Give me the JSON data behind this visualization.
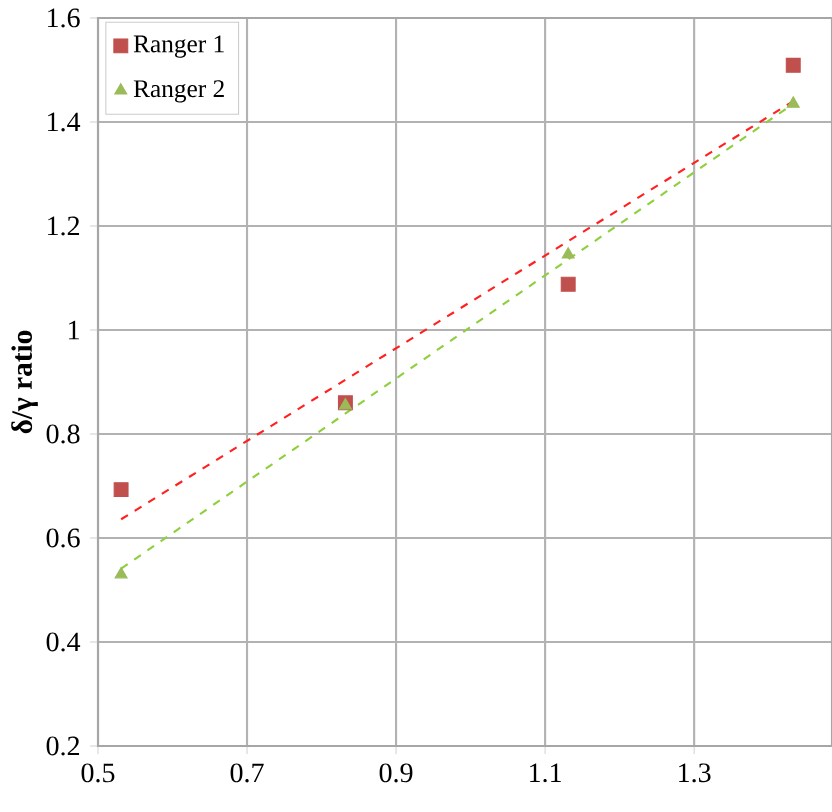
{
  "chart_data": {
    "type": "scatter",
    "ylabel": "δ/γ ratio",
    "xlim": [
      0.5,
      1.485
    ],
    "xticks": [
      0.5,
      0.7,
      0.9,
      1.1,
      1.3
    ],
    "ylim": [
      0.2,
      1.6
    ],
    "yticks": [
      0.2,
      0.4,
      0.6,
      0.8,
      1,
      1.2,
      1.4,
      1.6
    ],
    "grid": true,
    "legend": "top left",
    "series": [
      {
        "name": "Ranger 1",
        "marker": "square",
        "color": "#c0504d",
        "x": [
          0.531,
          0.832,
          1.131,
          1.433
        ],
        "values": [
          0.693,
          0.86,
          1.088,
          1.509
        ]
      },
      {
        "name": "Ranger 2",
        "marker": "triangle",
        "color": "#9bbb59",
        "x": [
          0.531,
          0.832,
          1.131,
          1.433
        ],
        "values": [
          0.53,
          0.855,
          1.145,
          1.435
        ]
      },
      {
        "type": "line",
        "line_style": "dashed",
        "color": "#ff2020",
        "x": [
          0.531,
          1.433
        ],
        "values": [
          0.636,
          1.44
        ]
      },
      {
        "type": "line",
        "line_style": "dashed",
        "color": "#8fcf3f",
        "x": [
          0.531,
          1.433
        ],
        "values": [
          0.541,
          1.435
        ]
      }
    ]
  }
}
